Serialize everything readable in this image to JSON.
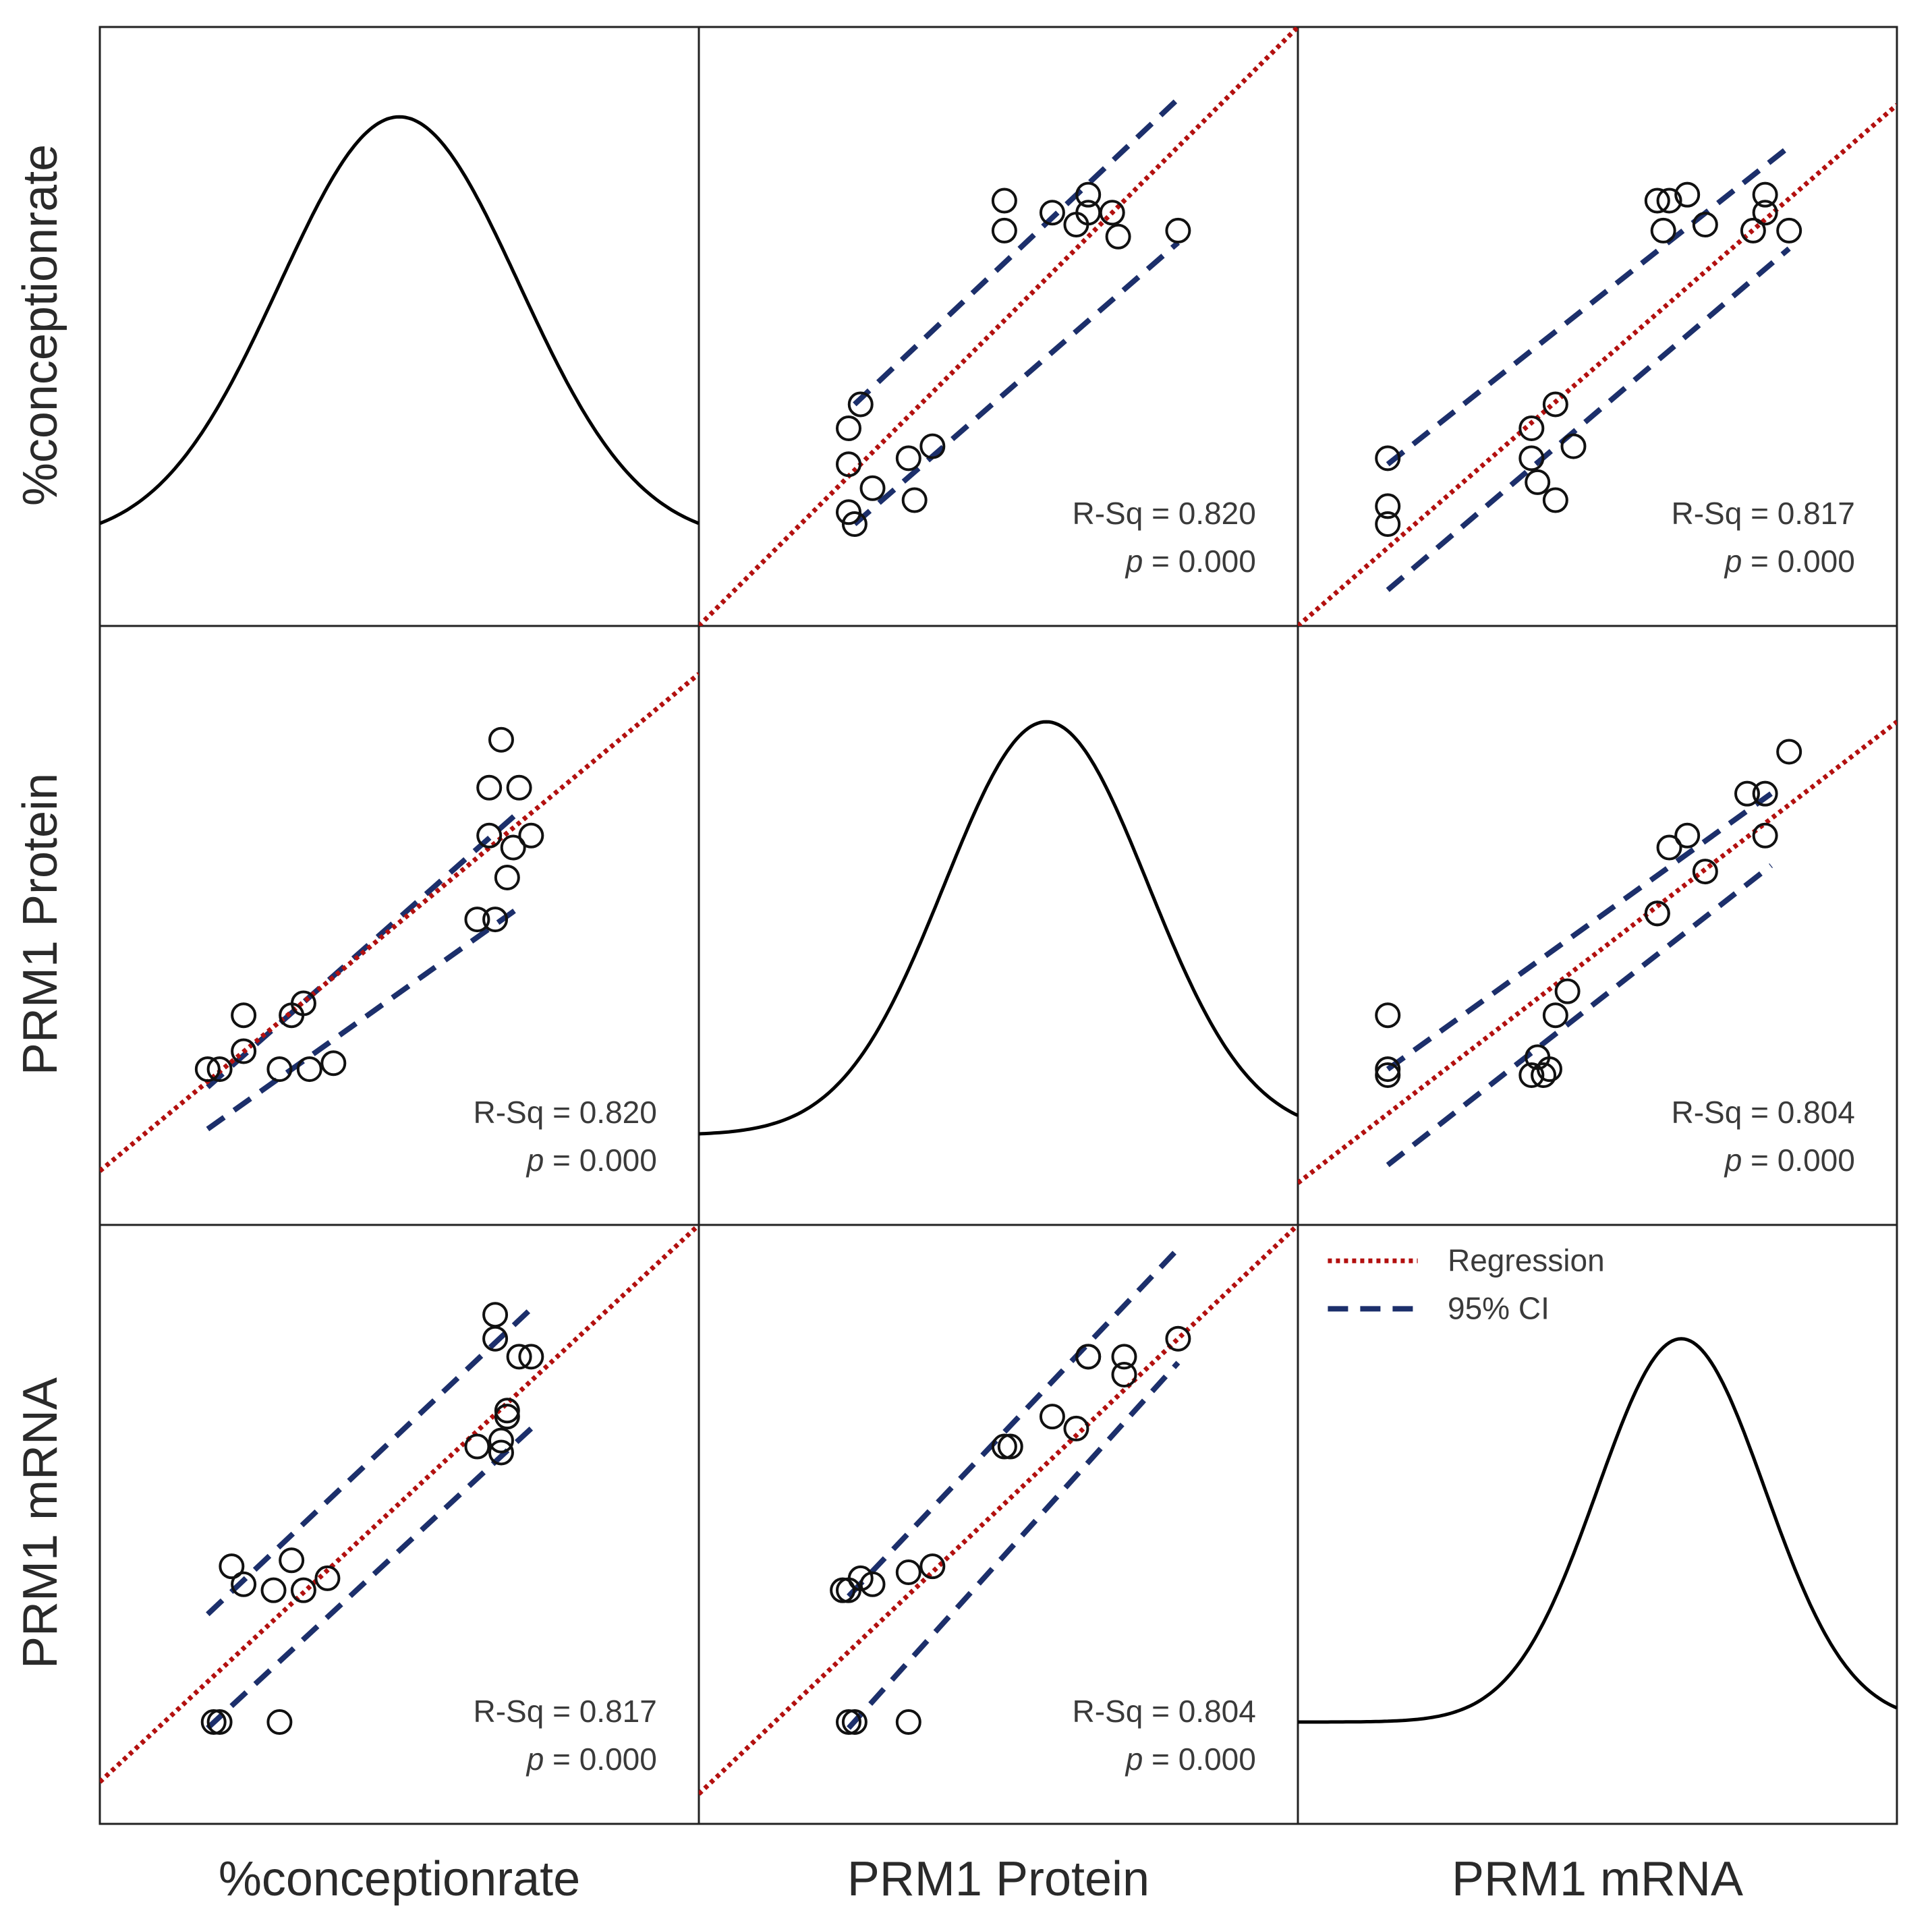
{
  "chart_data": {
    "type": "scatter-matrix",
    "variables": [
      "%conceptionrate",
      "PRM1 Protein",
      "PRM1 mRNA"
    ],
    "colors": {
      "regression": "#b3100f",
      "ci": "#1c2f6b",
      "points": "#111111",
      "density": "#000000"
    },
    "legend": {
      "position": "bottom-right panel, top-left",
      "regression_label": "Regression",
      "ci_label": "95% CI"
    },
    "density": [
      {
        "var": "%conceptionrate",
        "mean": 0.5,
        "sd": 0.2,
        "baseline": 0.14,
        "peak": 0.85
      },
      {
        "var": "PRM1 Protein",
        "mean": 0.58,
        "sd": 0.17,
        "baseline": 0.15,
        "peak": 0.84
      },
      {
        "var": "PRM1 mRNA",
        "mean": 0.64,
        "sd": 0.14,
        "baseline": 0.17,
        "peak": 0.81
      }
    ],
    "panels": [
      {
        "row": 0,
        "col": 1,
        "r_sq_text": "R-Sq = 0.820",
        "p_text": "p = 0.000",
        "reg": [
          [
            0,
            0
          ],
          [
            1,
            1
          ]
        ],
        "ci_upper": [
          [
            0.26,
            0.37
          ],
          [
            0.8,
            0.88
          ]
        ],
        "ci_lower": [
          [
            0.26,
            0.17
          ],
          [
            0.8,
            0.64
          ]
        ],
        "points": [
          [
            0.25,
            0.19
          ],
          [
            0.26,
            0.17
          ],
          [
            0.25,
            0.27
          ],
          [
            0.25,
            0.33
          ],
          [
            0.27,
            0.37
          ],
          [
            0.29,
            0.23
          ],
          [
            0.35,
            0.28
          ],
          [
            0.39,
            0.3
          ],
          [
            0.36,
            0.21
          ],
          [
            0.51,
            0.66
          ],
          [
            0.51,
            0.71
          ],
          [
            0.59,
            0.69
          ],
          [
            0.63,
            0.67
          ],
          [
            0.65,
            0.72
          ],
          [
            0.65,
            0.69
          ],
          [
            0.69,
            0.69
          ],
          [
            0.7,
            0.65
          ],
          [
            0.8,
            0.66
          ]
        ]
      },
      {
        "row": 0,
        "col": 2,
        "r_sq_text": "R-Sq = 0.817",
        "p_text": "p = 0.000",
        "reg": [
          [
            0,
            0
          ],
          [
            1,
            0.87
          ]
        ],
        "ci_upper": [
          [
            0.15,
            0.27
          ],
          [
            0.82,
            0.8
          ]
        ],
        "ci_lower": [
          [
            0.15,
            0.06
          ],
          [
            0.82,
            0.63
          ]
        ],
        "points": [
          [
            0.15,
            0.2
          ],
          [
            0.15,
            0.17
          ],
          [
            0.15,
            0.28
          ],
          [
            0.39,
            0.33
          ],
          [
            0.4,
            0.24
          ],
          [
            0.39,
            0.28
          ],
          [
            0.43,
            0.37
          ],
          [
            0.46,
            0.3
          ],
          [
            0.43,
            0.21
          ],
          [
            0.6,
            0.71
          ],
          [
            0.61,
            0.66
          ],
          [
            0.62,
            0.71
          ],
          [
            0.65,
            0.72
          ],
          [
            0.68,
            0.67
          ],
          [
            0.76,
            0.66
          ],
          [
            0.78,
            0.72
          ],
          [
            0.78,
            0.69
          ],
          [
            0.82,
            0.66
          ]
        ]
      },
      {
        "row": 1,
        "col": 0,
        "r_sq_text": "R-Sq = 0.820",
        "p_text": "p = 0.000",
        "reg": [
          [
            0,
            0.09
          ],
          [
            1,
            0.92
          ]
        ],
        "ci_upper": [
          [
            0.18,
            0.23
          ],
          [
            0.7,
            0.69
          ]
        ],
        "ci_lower": [
          [
            0.18,
            0.16
          ],
          [
            0.7,
            0.53
          ]
        ],
        "points": [
          [
            0.18,
            0.26
          ],
          [
            0.2,
            0.26
          ],
          [
            0.24,
            0.35
          ],
          [
            0.24,
            0.29
          ],
          [
            0.3,
            0.26
          ],
          [
            0.32,
            0.35
          ],
          [
            0.34,
            0.37
          ],
          [
            0.35,
            0.26
          ],
          [
            0.39,
            0.27
          ],
          [
            0.63,
            0.51
          ],
          [
            0.66,
            0.51
          ],
          [
            0.65,
            0.65
          ],
          [
            0.65,
            0.73
          ],
          [
            0.69,
            0.63
          ],
          [
            0.68,
            0.58
          ],
          [
            0.7,
            0.73
          ],
          [
            0.72,
            0.65
          ],
          [
            0.67,
            0.81
          ]
        ]
      },
      {
        "row": 1,
        "col": 2,
        "r_sq_text": "R-Sq = 0.804",
        "p_text": "p = 0.000",
        "reg": [
          [
            0,
            0.07
          ],
          [
            1,
            0.84
          ]
        ],
        "ci_upper": [
          [
            0.15,
            0.26
          ],
          [
            0.79,
            0.72
          ]
        ],
        "ci_lower": [
          [
            0.15,
            0.1
          ],
          [
            0.79,
            0.6
          ]
        ],
        "points": [
          [
            0.15,
            0.26
          ],
          [
            0.15,
            0.25
          ],
          [
            0.15,
            0.35
          ],
          [
            0.39,
            0.25
          ],
          [
            0.41,
            0.25
          ],
          [
            0.42,
            0.26
          ],
          [
            0.4,
            0.28
          ],
          [
            0.43,
            0.35
          ],
          [
            0.45,
            0.39
          ],
          [
            0.6,
            0.52
          ],
          [
            0.62,
            0.63
          ],
          [
            0.65,
            0.65
          ],
          [
            0.68,
            0.59
          ],
          [
            0.75,
            0.72
          ],
          [
            0.78,
            0.72
          ],
          [
            0.78,
            0.65
          ],
          [
            0.82,
            0.79
          ],
          [
            0.6,
            0.52
          ]
        ]
      },
      {
        "row": 2,
        "col": 0,
        "r_sq_text": "R-Sq = 0.817",
        "p_text": "p = 0.000",
        "reg": [
          [
            0,
            0.07
          ],
          [
            1,
            1
          ]
        ],
        "ci_upper": [
          [
            0.18,
            0.35
          ],
          [
            0.72,
            0.86
          ]
        ],
        "ci_lower": [
          [
            0.18,
            0.16
          ],
          [
            0.72,
            0.66
          ]
        ],
        "points": [
          [
            0.19,
            0.17
          ],
          [
            0.2,
            0.17
          ],
          [
            0.3,
            0.17
          ],
          [
            0.22,
            0.43
          ],
          [
            0.24,
            0.4
          ],
          [
            0.29,
            0.39
          ],
          [
            0.34,
            0.39
          ],
          [
            0.38,
            0.41
          ],
          [
            0.32,
            0.44
          ],
          [
            0.63,
            0.63
          ],
          [
            0.67,
            0.62
          ],
          [
            0.67,
            0.64
          ],
          [
            0.68,
            0.68
          ],
          [
            0.66,
            0.81
          ],
          [
            0.66,
            0.85
          ],
          [
            0.7,
            0.78
          ],
          [
            0.72,
            0.78
          ],
          [
            0.68,
            0.69
          ]
        ]
      },
      {
        "row": 2,
        "col": 1,
        "r_sq_text": "R-Sq = 0.804",
        "p_text": "p = 0.000",
        "reg": [
          [
            0,
            0.05
          ],
          [
            1,
            1
          ]
        ],
        "ci_upper": [
          [
            0.25,
            0.38
          ],
          [
            0.8,
            0.96
          ]
        ],
        "ci_lower": [
          [
            0.25,
            0.16
          ],
          [
            0.8,
            0.77
          ]
        ],
        "points": [
          [
            0.25,
            0.17
          ],
          [
            0.26,
            0.17
          ],
          [
            0.35,
            0.17
          ],
          [
            0.24,
            0.39
          ],
          [
            0.25,
            0.39
          ],
          [
            0.27,
            0.41
          ],
          [
            0.29,
            0.4
          ],
          [
            0.35,
            0.42
          ],
          [
            0.39,
            0.43
          ],
          [
            0.51,
            0.63
          ],
          [
            0.52,
            0.63
          ],
          [
            0.59,
            0.68
          ],
          [
            0.63,
            0.66
          ],
          [
            0.65,
            0.78
          ],
          [
            0.65,
            0.78
          ],
          [
            0.71,
            0.75
          ],
          [
            0.71,
            0.78
          ],
          [
            0.8,
            0.81
          ]
        ]
      }
    ]
  }
}
